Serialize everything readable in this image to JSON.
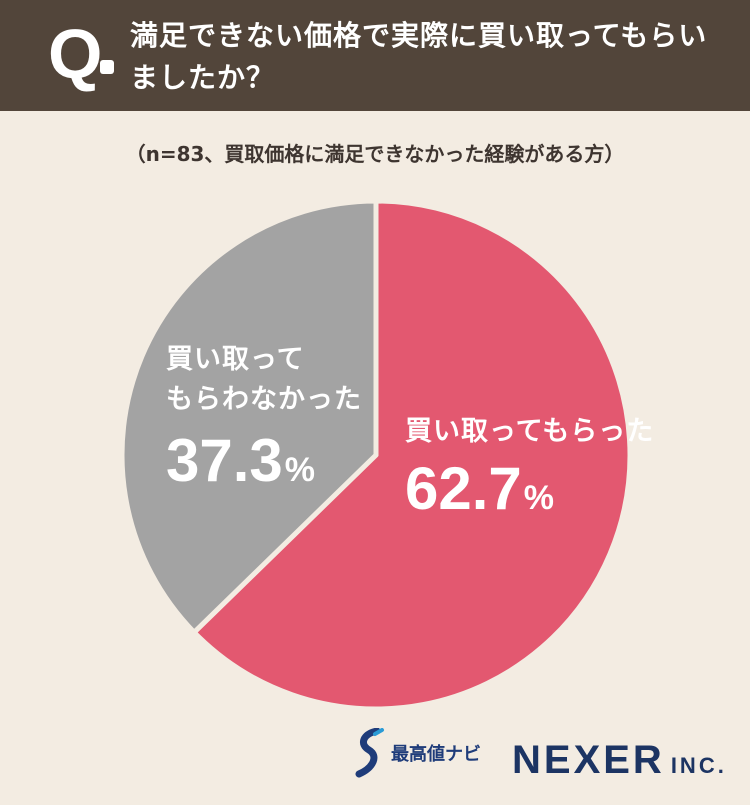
{
  "header": {
    "q_mark": "Q",
    "question": "満足できない価格で実際に買い取ってもらいましたか？"
  },
  "subtitle": "（n=83、買取価格に満足できなかった経験がある方）",
  "chart_data": {
    "type": "pie",
    "title": "満足できない価格で実際に買い取ってもらいましたか？",
    "subtitle": "（n=83、買取価格に満足できなかった経験がある方）",
    "slices": [
      {
        "label": "買い取ってもらった",
        "label_lines": [
          "買い取ってもらった"
        ],
        "value": 62.7,
        "pct_text": "62.7",
        "color": "#e35870"
      },
      {
        "label": "買い取ってもらわなかった",
        "label_lines": [
          "買い取って",
          "もらわなかった"
        ],
        "value": 37.3,
        "pct_text": "37.3",
        "color": "#a3a3a3"
      }
    ],
    "unit": "%",
    "start": "12 o'clock, clockwise",
    "separator_color": "#f3ece2"
  },
  "footer": {
    "brand_name": "最高値ナビ",
    "company": "NEXER",
    "company_suffix": "INC."
  }
}
